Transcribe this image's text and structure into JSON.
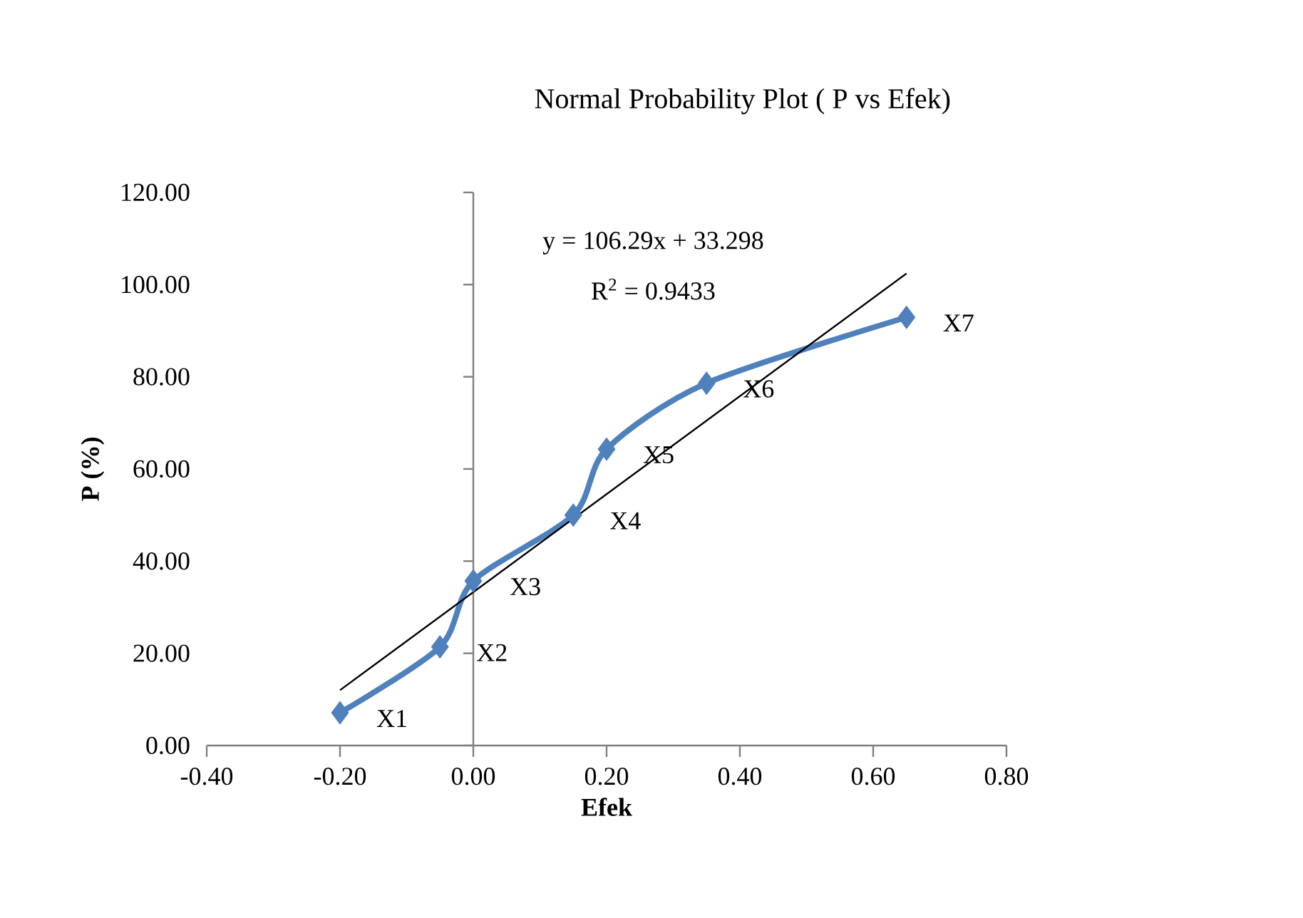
{
  "chart_data": {
    "type": "line",
    "title": "Normal Probability Plot ( P vs Efek)",
    "xlabel": "Efek",
    "ylabel": "P (%)",
    "xlim": [
      -0.4,
      0.8
    ],
    "ylim": [
      0,
      120
    ],
    "xticks": [
      {
        "value": -0.4,
        "label": "-0.40"
      },
      {
        "value": -0.2,
        "label": "-0.20"
      },
      {
        "value": 0,
        "label": "0.00"
      },
      {
        "value": 0.2,
        "label": "0.20"
      },
      {
        "value": 0.4,
        "label": "0.40"
      },
      {
        "value": 0.6,
        "label": "0.60"
      },
      {
        "value": 0.8,
        "label": "0.80"
      }
    ],
    "yticks": [
      {
        "value": 0,
        "label": "0.00"
      },
      {
        "value": 20,
        "label": "20.00"
      },
      {
        "value": 40,
        "label": "40.00"
      },
      {
        "value": 60,
        "label": "60.00"
      },
      {
        "value": 80,
        "label": "80.00"
      },
      {
        "value": 100,
        "label": "100.00"
      },
      {
        "value": 120,
        "label": "120.00"
      }
    ],
    "grid": false,
    "ref_lines": [
      {
        "axis": "x",
        "value": 0,
        "color": "#808080"
      }
    ],
    "series": [
      {
        "color": "#4f81bd",
        "marker": "diamond",
        "x": [
          -0.2,
          -0.05,
          0,
          0.15,
          0.2,
          0.35,
          0.65
        ],
        "values": [
          7.1,
          21.4,
          35.7,
          50,
          64.3,
          78.6,
          92.9
        ]
      },
      {
        "type": "line",
        "color": "#000000",
        "marker": "none",
        "x": [
          -0.2,
          0.65
        ],
        "values": [
          12.0,
          102.4
        ]
      }
    ],
    "annotations": [
      {
        "text": "X1",
        "x": -0.2,
        "y": 7.1
      },
      {
        "text": "X2",
        "x": -0.05,
        "y": 21.4
      },
      {
        "text": "X3",
        "x": 0,
        "y": 35.7
      },
      {
        "text": "X4",
        "x": 0.15,
        "y": 50
      },
      {
        "text": "X5",
        "x": 0.2,
        "y": 64.3
      },
      {
        "text": "X6",
        "x": 0.35,
        "y": 78.6
      },
      {
        "text": "X7",
        "x": 0.65,
        "y": 92.9
      },
      "y = 106.29x + 33.298",
      "R$^{2}$ = 0.9433"
    ]
  }
}
